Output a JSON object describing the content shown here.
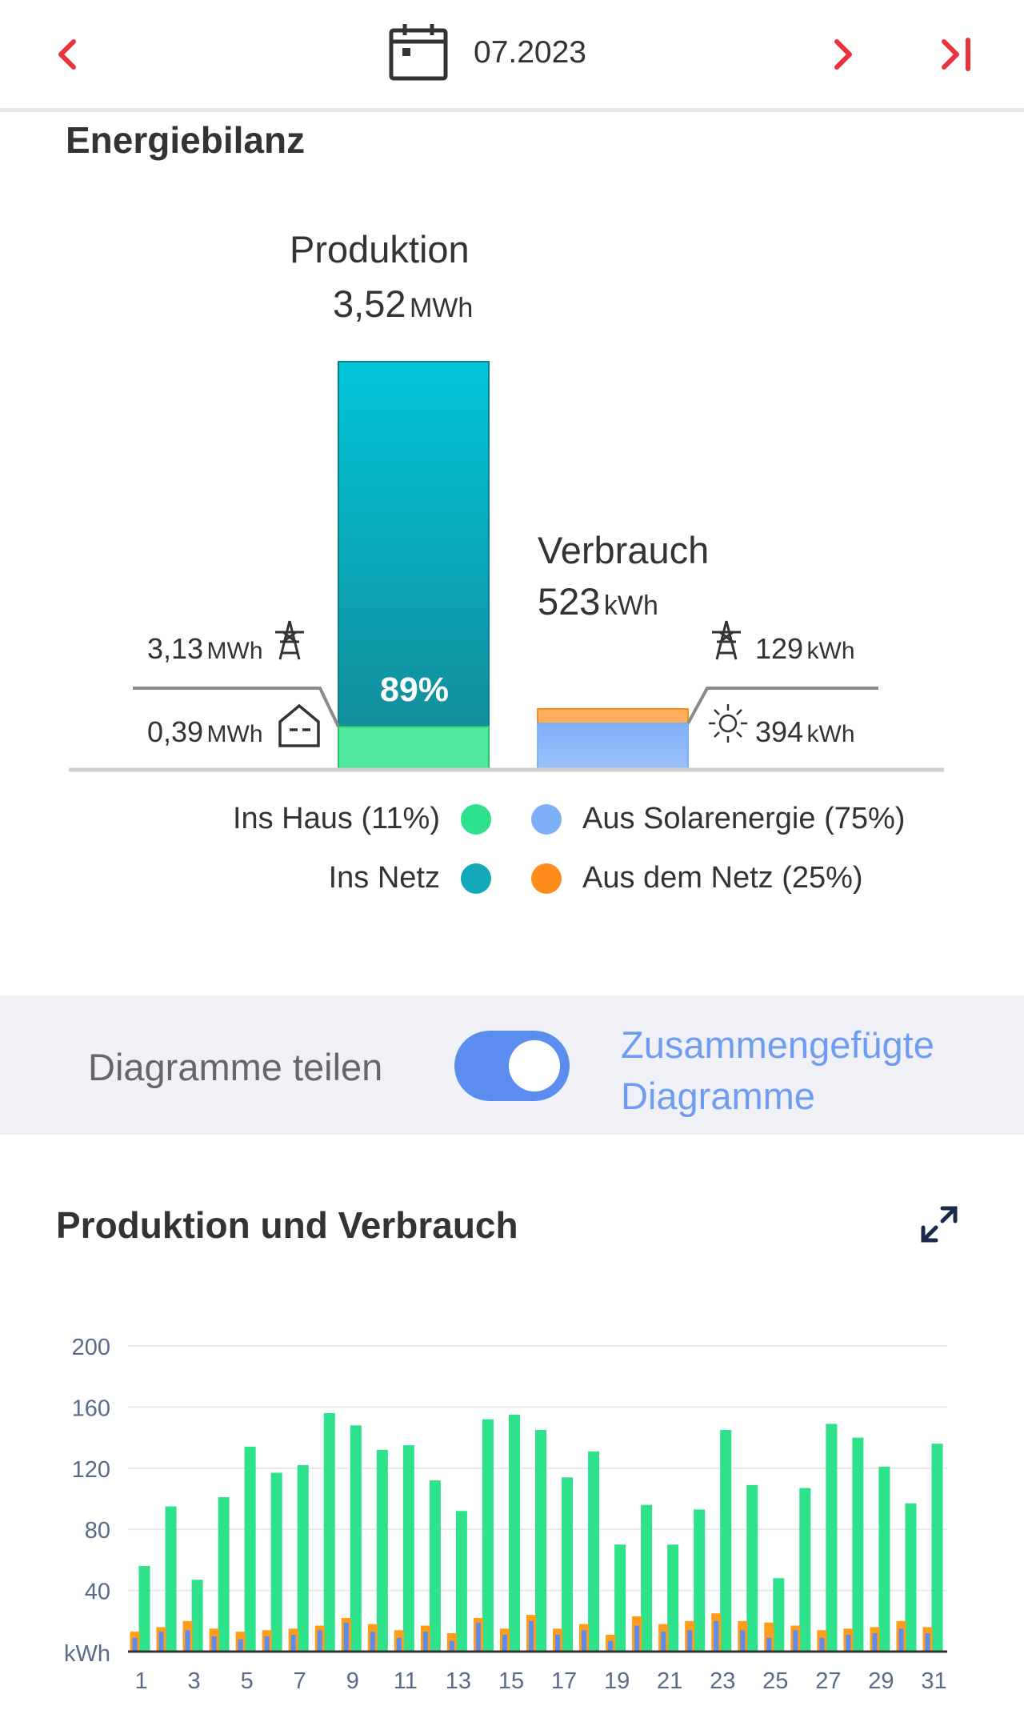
{
  "header": {
    "date": "07.2023"
  },
  "balance": {
    "title": "Energiebilanz",
    "production": {
      "label": "Produktion",
      "value": "3,52",
      "unit": "MWh",
      "percent_label": "89%"
    },
    "consumption": {
      "label": "Verbrauch",
      "value": "523",
      "unit": "kWh"
    },
    "to_grid": {
      "value": "3,13",
      "unit": "MWh"
    },
    "to_house": {
      "value": "0,39",
      "unit": "MWh"
    },
    "from_grid": {
      "value": "129",
      "unit": "kWh"
    },
    "from_solar": {
      "value": "394",
      "unit": "kWh"
    },
    "legend": {
      "house": "Ins Haus (11%)",
      "grid": "Ins Netz",
      "solar": "Aus Solarenergie (75%)",
      "from_grid": "Aus dem Netz (25%)"
    },
    "colors": {
      "house": "#2de28a",
      "grid": "#14a9b8",
      "solar": "#7fb0f7",
      "from_grid": "#ff8c1a"
    }
  },
  "toggle": {
    "left_label": "Diagramme teilen",
    "right_line1": "Zusammengefügte",
    "right_line2": "Diagramme",
    "on": true
  },
  "chart_section": {
    "title": "Produktion und Verbrauch"
  },
  "chart_data": {
    "type": "bar",
    "ylabel": "kWh",
    "ylim": [
      0,
      200
    ],
    "yticks": [
      40,
      80,
      120,
      160,
      200
    ],
    "x_tick_labels": [
      "1",
      "3",
      "5",
      "7",
      "9",
      "11",
      "13",
      "15",
      "17",
      "19",
      "21",
      "23",
      "25",
      "27",
      "29",
      "31"
    ],
    "categories": [
      1,
      2,
      3,
      4,
      5,
      6,
      7,
      8,
      9,
      10,
      11,
      12,
      13,
      14,
      15,
      16,
      17,
      18,
      19,
      20,
      21,
      22,
      23,
      24,
      25,
      26,
      27,
      28,
      29,
      30,
      31
    ],
    "series": [
      {
        "color": "#2de28a",
        "values": [
          56,
          95,
          47,
          101,
          134,
          117,
          122,
          156,
          148,
          132,
          135,
          112,
          92,
          152,
          155,
          145,
          114,
          131,
          70,
          96,
          70,
          93,
          145,
          109,
          48,
          107,
          149,
          140,
          121,
          97,
          136
        ]
      },
      {
        "color": "#ff9c1a",
        "values": [
          13,
          16,
          20,
          15,
          13,
          14,
          15,
          17,
          22,
          18,
          14,
          17,
          12,
          22,
          15,
          24,
          15,
          18,
          11,
          23,
          18,
          20,
          25,
          20,
          19,
          17,
          14,
          15,
          16,
          20,
          16
        ]
      },
      {
        "color": "#5b8def",
        "values": [
          9,
          13,
          14,
          10,
          8,
          10,
          11,
          14,
          19,
          13,
          9,
          13,
          7,
          19,
          11,
          20,
          11,
          14,
          7,
          17,
          13,
          14,
          20,
          14,
          9,
          14,
          9,
          11,
          12,
          15,
          12
        ]
      }
    ]
  }
}
